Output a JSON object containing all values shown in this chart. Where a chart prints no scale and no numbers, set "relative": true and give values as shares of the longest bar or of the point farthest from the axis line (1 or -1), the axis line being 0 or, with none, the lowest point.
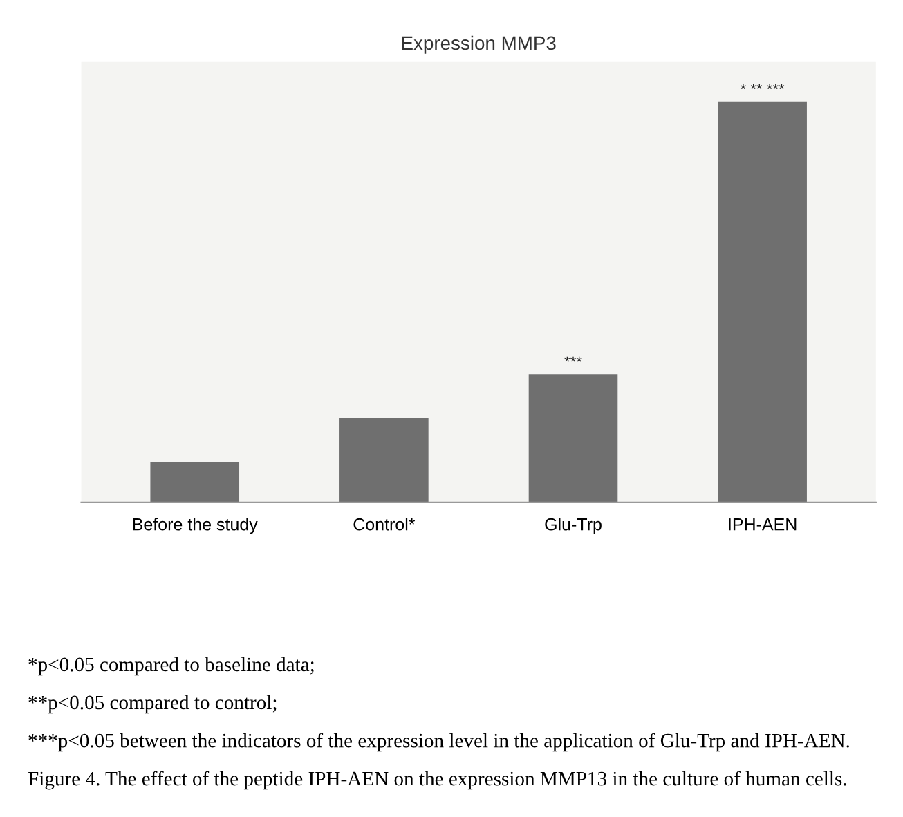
{
  "chart_data": {
    "type": "bar",
    "title": "Expression MMP3",
    "categories": [
      "Before the study",
      "Control*",
      "Glu-Trp",
      "IPH-AEN"
    ],
    "values": [
      0.1,
      0.21,
      0.32,
      1
    ],
    "relative": true,
    "color": "#6f6f6f",
    "annotations": [
      {
        "text": "***",
        "x": "Glu-Trp",
        "y": 0.32
      },
      {
        "text": "* ** ***",
        "x": "IPH-AEN",
        "y": 1
      },
      "*p<0.05 compared to baseline data;",
      "**p<0.05 compared to control;",
      "***p<0.05 between the indicators of the expression level in the application of Glu-Trp and IPH-AEN.",
      "Figure 4. The effect of the peptide IPH-AEN on the expression MMP13 in the culture of human cells."
    ]
  }
}
